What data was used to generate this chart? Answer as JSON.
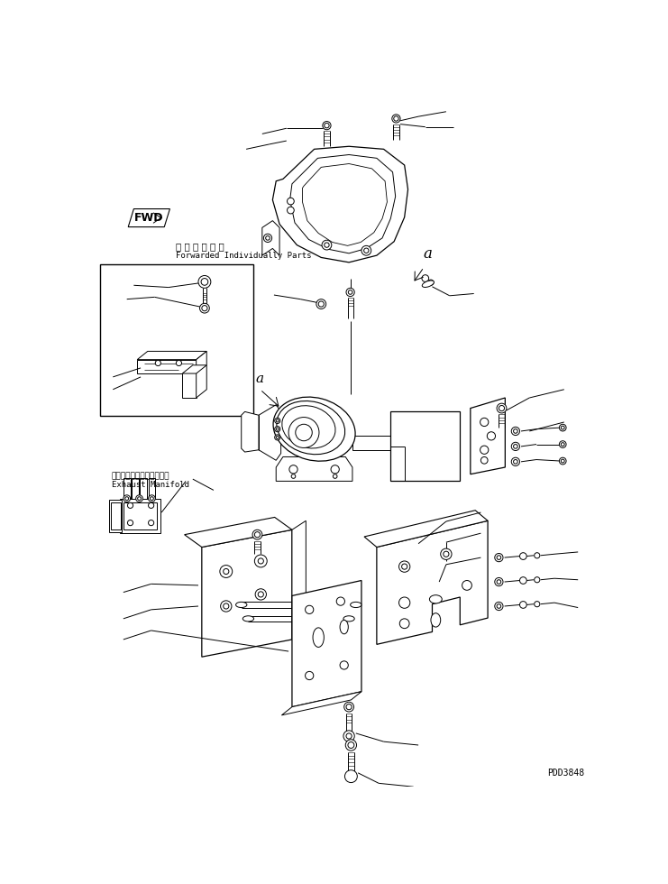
{
  "bg_color": "#ffffff",
  "lc": "#000000",
  "lw": 0.7,
  "fig_w": 7.41,
  "fig_h": 9.8,
  "dpi": 100,
  "title_jp": "単 品 発 送 部 品",
  "title_en": "Forwarded Individually Parts",
  "exhaust_jp": "エキゾーストマニホールド",
  "exhaust_en": "Exhaust Manifold",
  "label_a": "a",
  "watermark": "PDD3848",
  "fwd_text": "FWD"
}
